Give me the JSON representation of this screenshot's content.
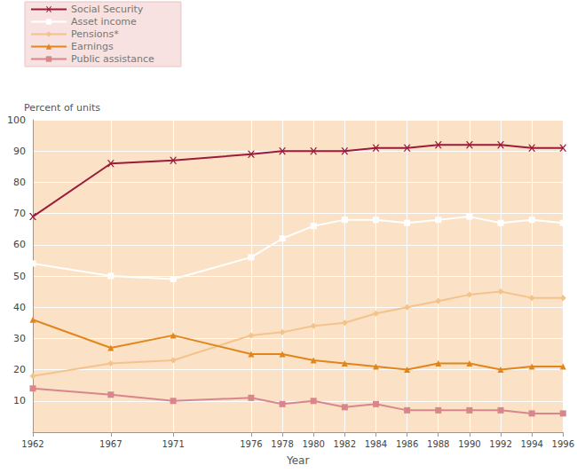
{
  "chart_data": {
    "type": "line",
    "x_label": "Year",
    "y_label": "Percent of units",
    "x": [
      1962,
      1967,
      1971,
      1976,
      1978,
      1980,
      1982,
      1984,
      1986,
      1988,
      1990,
      1992,
      1994,
      1996
    ],
    "xlim": [
      1962,
      1996
    ],
    "xticks": [
      1962,
      1967,
      1971,
      1976,
      1978,
      1980,
      1982,
      1984,
      1986,
      1988,
      1990,
      1992,
      1994,
      1996
    ],
    "ylim": [
      0,
      100
    ],
    "yticks": [
      10,
      20,
      30,
      40,
      50,
      60,
      70,
      80,
      90,
      100
    ],
    "grid": true,
    "legend": "top-left",
    "series": [
      {
        "name": "Social Security",
        "color": "#9b1b3a",
        "marker": "x",
        "values": [
          69,
          86,
          87,
          89,
          90,
          90,
          90,
          91,
          91,
          92,
          92,
          92,
          91,
          91
        ]
      },
      {
        "name": "Asset income",
        "color": "#ffffff",
        "marker": "square",
        "values": [
          54,
          50,
          49,
          56,
          62,
          66,
          68,
          68,
          67,
          68,
          69,
          67,
          68,
          67
        ]
      },
      {
        "name": "Pensions*",
        "color": "#f2c48c",
        "marker": "diamond",
        "values": [
          18,
          22,
          23,
          31,
          32,
          34,
          35,
          38,
          40,
          42,
          44,
          45,
          43,
          43
        ]
      },
      {
        "name": "Earnings",
        "color": "#e0861c",
        "marker": "triangle",
        "values": [
          36,
          27,
          31,
          25,
          25,
          23,
          22,
          21,
          20,
          22,
          22,
          20,
          21,
          21
        ]
      },
      {
        "name": "Public assistance",
        "color": "#d8868c",
        "marker": "square",
        "values": [
          14,
          12,
          10,
          11,
          9,
          10,
          8,
          9,
          7,
          7,
          7,
          7,
          6,
          6
        ]
      }
    ]
  }
}
